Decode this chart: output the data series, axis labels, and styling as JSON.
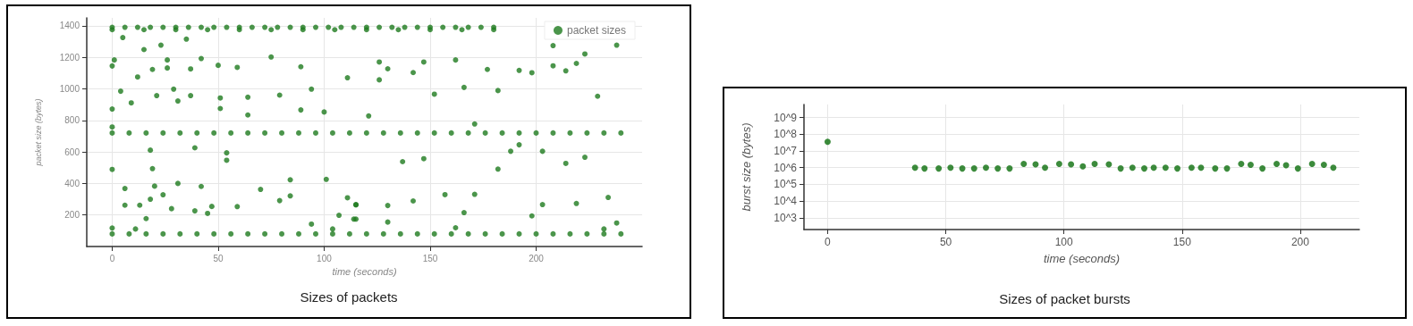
{
  "chart_data": [
    {
      "type": "scatter",
      "xlabel": "time (seconds)",
      "ylabel": "packet size (bytes)",
      "annotations": [
        "Sizes of packets"
      ],
      "xlim": [
        -12,
        250
      ],
      "xticks": [
        0,
        50,
        100,
        150,
        200
      ],
      "ylim": [
        0,
        1450
      ],
      "yticks": [
        200,
        400,
        600,
        800,
        1000,
        1200,
        1400
      ],
      "grid": true,
      "legend": "top right",
      "marker": "circle",
      "series": [
        {
          "name": "packet sizes",
          "color": "#1e7b1e",
          "x": [
            5,
            15,
            23,
            35,
            26,
            1,
            0,
            19,
            26,
            37,
            42,
            50,
            59,
            75,
            89,
            111,
            12,
            4,
            9,
            21,
            29,
            31,
            37,
            51,
            51,
            64,
            64,
            79,
            89,
            94,
            100,
            0,
            0,
            39,
            18,
            54,
            54,
            19,
            0,
            6,
            20,
            31,
            42,
            84,
            101,
            70,
            6,
            13,
            24,
            18,
            28,
            39,
            47,
            45,
            59,
            79,
            84,
            16,
            107,
            94,
            111,
            115,
            115,
            0,
            11,
            104,
            126,
            130,
            126,
            142,
            147,
            162,
            166,
            152,
            177,
            182,
            192,
            198,
            208,
            238,
            208,
            214,
            219,
            223,
            229,
            121,
            171,
            137,
            147,
            182,
            188,
            192,
            203,
            214,
            223,
            157,
            171,
            115,
            130,
            142,
            166,
            203,
            219,
            234,
            114,
            130,
            198,
            238,
            162,
            232,
            0,
            6,
            12,
            18,
            24,
            30,
            36,
            42,
            48,
            54,
            60,
            66,
            72,
            78,
            84,
            90,
            96,
            102,
            108,
            114,
            120,
            126,
            132,
            138,
            144,
            150,
            156,
            162,
            168,
            174,
            180,
            0,
            15,
            30,
            45,
            60,
            75,
            90,
            105,
            120,
            135,
            150,
            165,
            180,
            0,
            8,
            16,
            24,
            32,
            40,
            48,
            56,
            64,
            72,
            80,
            88,
            96,
            104,
            112,
            120,
            128,
            136,
            144,
            152,
            160,
            168,
            176,
            184,
            192,
            200,
            208,
            216,
            224,
            232,
            240,
            0,
            8,
            16,
            24,
            32,
            40,
            48,
            56,
            64,
            72,
            80,
            88,
            96,
            104,
            112,
            120,
            128,
            136,
            144,
            152,
            160,
            168,
            176,
            184,
            192,
            200,
            208,
            216,
            224,
            232,
            240
          ],
          "values": [
            1325,
            1249,
            1277,
            1315,
            1183,
            1183,
            1145,
            1123,
            1132,
            1126,
            1192,
            1149,
            1136,
            1202,
            1140,
            1070,
            1075,
            985,
            911,
            957,
            998,
            923,
            957,
            942,
            875,
            947,
            834,
            960,
            866,
            998,
            853,
            872,
            758,
            626,
            611,
            594,
            547,
            494,
            489,
            368,
            383,
            400,
            381,
            423,
            426,
            362,
            262,
            262,
            328,
            300,
            240,
            226,
            254,
            210,
            253,
            291,
            321,
            177,
            198,
            142,
            309,
            264,
            174,
            117,
            111,
            111,
            1170,
            1127,
            1057,
            1103,
            1170,
            1183,
            1009,
            966,
            1123,
            989,
            1117,
            1102,
            1274,
            1277,
            1146,
            1114,
            1161,
            1221,
            953,
            828,
            777,
            538,
            557,
            491,
            604,
            645,
            604,
            527,
            566,
            329,
            331,
            266,
            260,
            289,
            215,
            266,
            273,
            311,
            174,
            155,
            194,
            149,
            119,
            111,
            1390,
            1390,
            1390,
            1390,
            1390,
            1390,
            1390,
            1390,
            1390,
            1390,
            1390,
            1390,
            1390,
            1390,
            1390,
            1390,
            1390,
            1390,
            1390,
            1390,
            1390,
            1390,
            1390,
            1390,
            1390,
            1390,
            1390,
            1390,
            1390,
            1390,
            1390,
            1375,
            1375,
            1375,
            1375,
            1375,
            1375,
            1375,
            1375,
            1375,
            1375,
            1375,
            1375,
            1375,
            720,
            720,
            720,
            720,
            720,
            720,
            720,
            720,
            720,
            720,
            720,
            720,
            720,
            720,
            720,
            720,
            720,
            720,
            720,
            720,
            720,
            720,
            720,
            720,
            720,
            720,
            720,
            720,
            720,
            720,
            720,
            80,
            80,
            80,
            80,
            80,
            80,
            80,
            80,
            80,
            80,
            80,
            80,
            80,
            80,
            80,
            80,
            80,
            80,
            80,
            80,
            80,
            80,
            80,
            80,
            80,
            80,
            80,
            80,
            80,
            80,
            80
          ]
        }
      ]
    },
    {
      "type": "scatter",
      "xlabel": "time (seconds)",
      "ylabel": "burst size (bytes)",
      "annotations": [
        "Sizes of packet bursts"
      ],
      "xlim": [
        -10,
        225
      ],
      "xticks": [
        0,
        50,
        100,
        150,
        200
      ],
      "ylim": [
        200,
        6000000000
      ],
      "yticks": [
        {
          "value": 1000,
          "label": "10^3"
        },
        {
          "value": 10000,
          "label": "10^4"
        },
        {
          "value": 100000,
          "label": "10^5"
        },
        {
          "value": 1000000,
          "label": "10^6"
        },
        {
          "value": 10000000,
          "label": "10^7"
        },
        {
          "value": 100000000,
          "label": "10^8"
        },
        {
          "value": 1000000000,
          "label": "10^9"
        }
      ],
      "log": true,
      "grid": true,
      "marker": "circle",
      "color": "#0b6e0b",
      "x": [
        0,
        37,
        41,
        47,
        52,
        57,
        62,
        67,
        72,
        77,
        83,
        88,
        92,
        98,
        103,
        108,
        113,
        119,
        124,
        129,
        134,
        138,
        143,
        148,
        154,
        158,
        164,
        169,
        175,
        179,
        184,
        190,
        194,
        199,
        205,
        210,
        214
      ],
      "values": [
        35000000,
        1000000,
        900000,
        900000,
        1000000,
        900000,
        900000,
        1000000,
        900000,
        900000,
        1700000,
        1600000,
        1000000,
        1700000,
        1600000,
        1200000,
        1700000,
        1600000,
        900000,
        1000000,
        900000,
        1000000,
        1000000,
        900000,
        1000000,
        1000000,
        900000,
        900000,
        1700000,
        1500000,
        900000,
        1700000,
        1400000,
        900000,
        1700000,
        1500000,
        1000000
      ]
    }
  ]
}
